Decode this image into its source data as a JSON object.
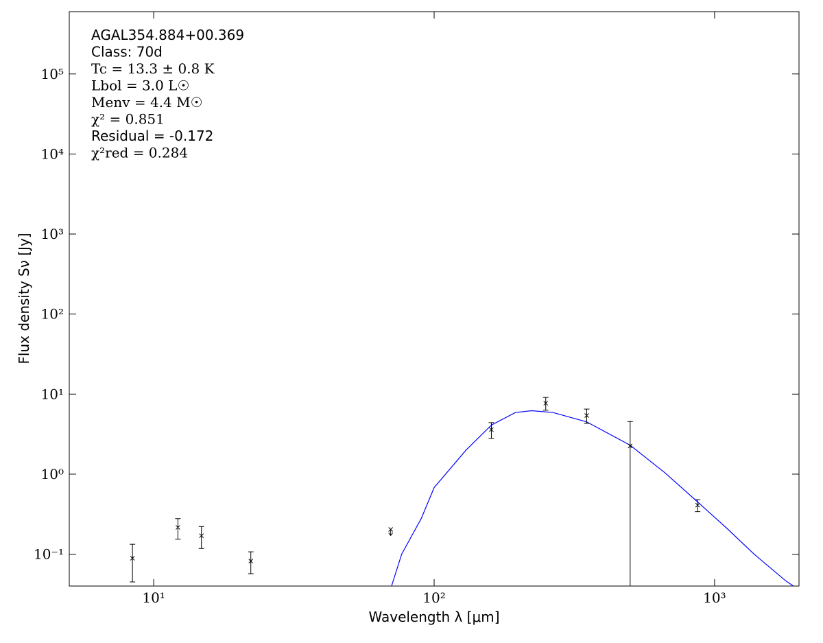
{
  "chart_data": {
    "type": "scatter",
    "annotations": [
      "AGAL354.884+00.369",
      "Class: 70d",
      "Tc = 13.3 ± 0.8 K",
      "Lbol = 3.0 L☉",
      "Menv = 4.4 M☉",
      "χ² = 0.851",
      "Residual = -0.172",
      "χ²red = 0.284"
    ],
    "xlabel": "Wavelength λ [μm]",
    "ylabel": "Flux density Sν [Jy]",
    "xscale": "log",
    "yscale": "log",
    "xlim": [
      5,
      2000
    ],
    "ylim": [
      0.04,
      600000
    ],
    "xticks": [
      {
        "value": 10,
        "label": "10¹"
      },
      {
        "value": 100,
        "label": "10²"
      },
      {
        "value": 1000,
        "label": "10³"
      }
    ],
    "yticks": [
      {
        "value": 0.1,
        "label": "10⁻¹"
      },
      {
        "value": 1,
        "label": "10⁰"
      },
      {
        "value": 10,
        "label": "10¹"
      },
      {
        "value": 100,
        "label": "10²"
      },
      {
        "value": 1000,
        "label": "10³"
      },
      {
        "value": 10000,
        "label": "10⁴"
      },
      {
        "value": 100000,
        "label": "10⁵"
      }
    ],
    "color": "#000000",
    "x": [
      8.4,
      12.2,
      14.8,
      22.2,
      160,
      250,
      350,
      500,
      870
    ],
    "values": [
      0.089,
      0.216,
      0.17,
      0.082,
      3.6,
      7.7,
      5.4,
      2.25,
      0.41
    ],
    "errors": [
      0.044,
      0.062,
      0.052,
      0.025,
      0.8,
      1.4,
      1.1,
      2.3,
      0.07
    ],
    "upper_limits": {
      "x": [
        70
      ],
      "values": [
        0.204
      ]
    },
    "model": {
      "color": "#0000ff",
      "x": [
        70.5,
        76.6,
        90,
        100,
        130,
        160,
        195,
        223,
        265,
        350,
        500,
        665,
        870,
        1107,
        1384,
        1800,
        2000
      ],
      "values": [
        0.04,
        0.1,
        0.28,
        0.68,
        2.0,
        4.1,
        5.9,
        6.2,
        5.9,
        4.5,
        2.3,
        1.04,
        0.45,
        0.21,
        0.1,
        0.046,
        0.036
      ]
    }
  }
}
